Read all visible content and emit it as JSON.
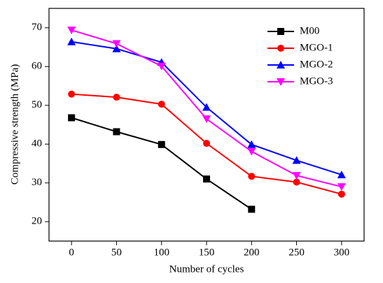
{
  "chart_data": {
    "type": "line",
    "xlabel": "Number of cycles",
    "ylabel": "Compressive strength (MPa)",
    "x": [
      0,
      50,
      100,
      150,
      200,
      250,
      300
    ],
    "series": [
      {
        "name": "M00",
        "color": "#000000",
        "marker": "square",
        "values": [
          46.8,
          43.2,
          39.9,
          31.0,
          23.2,
          null,
          null
        ]
      },
      {
        "name": "MGO-1",
        "color": "#ff0000",
        "marker": "circle",
        "values": [
          52.9,
          52.1,
          50.3,
          40.2,
          31.7,
          30.2,
          27.1
        ]
      },
      {
        "name": "MGO-2",
        "color": "#0000ff",
        "marker": "triangle-up",
        "values": [
          66.4,
          64.6,
          61.1,
          49.5,
          39.9,
          35.8,
          32.1
        ]
      },
      {
        "name": "MGO-3",
        "color": "#ff00ff",
        "marker": "triangle-down",
        "values": [
          69.4,
          65.9,
          60.1,
          46.5,
          38.1,
          31.9,
          29.0
        ]
      }
    ],
    "xlim": [
      -25,
      325
    ],
    "xticks": [
      0,
      50,
      100,
      150,
      200,
      250,
      300
    ],
    "ylim": [
      15,
      75
    ],
    "yticks": [
      20,
      30,
      40,
      50,
      60,
      70
    ],
    "grid": false,
    "legend": "upper right"
  }
}
